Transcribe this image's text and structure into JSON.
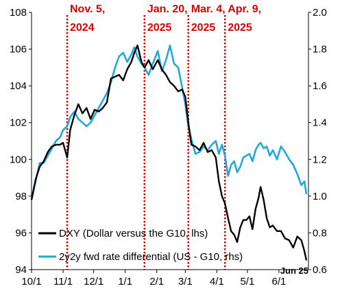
{
  "chart_data": {
    "type": "line",
    "title": "",
    "xlabel": "",
    "ylabel": "",
    "x_ticks": [
      "10/1",
      "11/1",
      "12/1",
      "1/1",
      "2/1",
      "3/1",
      "4/1",
      "5/1",
      "6/1"
    ],
    "x_tick_dates": [
      "2024-10-01",
      "2024-11-01",
      "2024-12-01",
      "2025-01-01",
      "2025-02-01",
      "2025-03-01",
      "2025-04-01",
      "2025-05-01",
      "2025-06-01"
    ],
    "x_range": [
      "2024-10-01",
      "2025-06-30"
    ],
    "y_left": {
      "lim": [
        94,
        108
      ],
      "ticks": [
        "94",
        "96",
        "98",
        "100",
        "102",
        "104",
        "106",
        "108"
      ]
    },
    "y_right": {
      "lim": [
        0.6,
        2.0
      ],
      "ticks": [
        "0.6",
        "0.8",
        "1.0",
        "1.2",
        "1.4",
        "1.6",
        "1.8",
        "2.0"
      ]
    },
    "grid": false,
    "legend_position": "bottom-left",
    "end_label": "Jun 25",
    "events": [
      {
        "date": "2024-11-05",
        "lines": [
          "Nov. 5,",
          "2024"
        ]
      },
      {
        "date": "2025-01-20",
        "lines": [
          "Jan. 20,",
          "2025"
        ]
      },
      {
        "date": "2025-03-04",
        "lines": [
          "Mar. 4,",
          "2025"
        ]
      },
      {
        "date": "2025-04-09",
        "lines": [
          "Apr. 9,",
          "2025"
        ]
      }
    ],
    "series": [
      {
        "name": "DXY (Dollar versus the G10, lhs)",
        "axis": "left",
        "color": "#000000",
        "points": [
          [
            "2024-10-01",
            97.8
          ],
          [
            "2024-10-05",
            98.9
          ],
          [
            "2024-10-09",
            99.6
          ],
          [
            "2024-10-13",
            99.9
          ],
          [
            "2024-10-17",
            100.4
          ],
          [
            "2024-10-21",
            100.7
          ],
          [
            "2024-10-25",
            100.8
          ],
          [
            "2024-10-29",
            100.8
          ],
          [
            "2024-11-01",
            100.9
          ],
          [
            "2024-11-05",
            100.1
          ],
          [
            "2024-11-08",
            101.6
          ],
          [
            "2024-11-12",
            102.4
          ],
          [
            "2024-11-16",
            103.0
          ],
          [
            "2024-11-20",
            102.5
          ],
          [
            "2024-11-24",
            102.8
          ],
          [
            "2024-11-28",
            102.2
          ],
          [
            "2024-12-02",
            102.7
          ],
          [
            "2024-12-06",
            102.6
          ],
          [
            "2024-12-10",
            102.8
          ],
          [
            "2024-12-14",
            103.1
          ],
          [
            "2024-12-18",
            104.4
          ],
          [
            "2024-12-22",
            104.5
          ],
          [
            "2024-12-26",
            104.6
          ],
          [
            "2024-12-30",
            104.3
          ],
          [
            "2025-01-03",
            104.9
          ],
          [
            "2025-01-07",
            105.3
          ],
          [
            "2025-01-10",
            105.8
          ],
          [
            "2025-01-13",
            106.2
          ],
          [
            "2025-01-17",
            105.3
          ],
          [
            "2025-01-20",
            105.0
          ],
          [
            "2025-01-24",
            105.4
          ],
          [
            "2025-01-28",
            104.9
          ],
          [
            "2025-02-02",
            105.4
          ],
          [
            "2025-02-06",
            104.9
          ],
          [
            "2025-02-10",
            104.6
          ],
          [
            "2025-02-14",
            104.2
          ],
          [
            "2025-02-18",
            104.0
          ],
          [
            "2025-02-22",
            103.7
          ],
          [
            "2025-02-26",
            103.8
          ],
          [
            "2025-03-01",
            103.4
          ],
          [
            "2025-03-04",
            102.0
          ],
          [
            "2025-03-07",
            100.8
          ],
          [
            "2025-03-11",
            100.7
          ],
          [
            "2025-03-15",
            100.5
          ],
          [
            "2025-03-19",
            100.9
          ],
          [
            "2025-03-23",
            100.4
          ],
          [
            "2025-03-27",
            100.5
          ],
          [
            "2025-03-31",
            100.1
          ],
          [
            "2025-04-03",
            98.8
          ],
          [
            "2025-04-06",
            98.0
          ],
          [
            "2025-04-09",
            97.6
          ],
          [
            "2025-04-12",
            96.8
          ],
          [
            "2025-04-15",
            96.1
          ],
          [
            "2025-04-18",
            95.9
          ],
          [
            "2025-04-21",
            95.5
          ],
          [
            "2025-04-24",
            96.3
          ],
          [
            "2025-04-27",
            96.7
          ],
          [
            "2025-04-30",
            96.7
          ],
          [
            "2025-05-03",
            96.9
          ],
          [
            "2025-05-06",
            96.2
          ],
          [
            "2025-05-09",
            97.3
          ],
          [
            "2025-05-12",
            97.9
          ],
          [
            "2025-05-14",
            98.5
          ],
          [
            "2025-05-17",
            97.8
          ],
          [
            "2025-05-20",
            96.8
          ],
          [
            "2025-05-23",
            96.3
          ],
          [
            "2025-05-26",
            96.4
          ],
          [
            "2025-05-30",
            96.1
          ],
          [
            "2025-06-03",
            96.1
          ],
          [
            "2025-06-07",
            95.7
          ],
          [
            "2025-06-11",
            95.6
          ],
          [
            "2025-06-15",
            95.2
          ],
          [
            "2025-06-19",
            95.8
          ],
          [
            "2025-06-23",
            95.6
          ],
          [
            "2025-06-26",
            95.0
          ],
          [
            "2025-06-28",
            94.5
          ]
        ]
      },
      {
        "name": "2y2y fwd rate differential (US - G10, rhs)",
        "axis": "right",
        "color": "#1fa8dc",
        "points": [
          [
            "2024-10-01",
            0.98
          ],
          [
            "2024-10-05",
            1.08
          ],
          [
            "2024-10-09",
            1.18
          ],
          [
            "2024-10-13",
            1.18
          ],
          [
            "2024-10-17",
            1.22
          ],
          [
            "2024-10-21",
            1.26
          ],
          [
            "2024-10-25",
            1.3
          ],
          [
            "2024-10-29",
            1.32
          ],
          [
            "2024-11-01",
            1.36
          ],
          [
            "2024-11-05",
            1.38
          ],
          [
            "2024-11-08",
            1.43
          ],
          [
            "2024-11-12",
            1.46
          ],
          [
            "2024-11-16",
            1.42
          ],
          [
            "2024-11-20",
            1.4
          ],
          [
            "2024-11-24",
            1.38
          ],
          [
            "2024-11-28",
            1.4
          ],
          [
            "2024-12-02",
            1.44
          ],
          [
            "2024-12-06",
            1.48
          ],
          [
            "2024-12-10",
            1.52
          ],
          [
            "2024-12-14",
            1.56
          ],
          [
            "2024-12-18",
            1.62
          ],
          [
            "2024-12-22",
            1.7
          ],
          [
            "2024-12-26",
            1.76
          ],
          [
            "2024-12-30",
            1.78
          ],
          [
            "2025-01-03",
            1.73
          ],
          [
            "2025-01-07",
            1.77
          ],
          [
            "2025-01-10",
            1.81
          ],
          [
            "2025-01-13",
            1.76
          ],
          [
            "2025-01-17",
            1.72
          ],
          [
            "2025-01-20",
            1.7
          ],
          [
            "2025-01-24",
            1.66
          ],
          [
            "2025-01-28",
            1.72
          ],
          [
            "2025-02-02",
            1.79
          ],
          [
            "2025-02-06",
            1.68
          ],
          [
            "2025-02-10",
            1.74
          ],
          [
            "2025-02-14",
            1.82
          ],
          [
            "2025-02-18",
            1.72
          ],
          [
            "2025-02-22",
            1.7
          ],
          [
            "2025-02-26",
            1.59
          ],
          [
            "2025-03-01",
            1.5
          ],
          [
            "2025-03-04",
            1.38
          ],
          [
            "2025-03-07",
            1.31
          ],
          [
            "2025-03-11",
            1.23
          ],
          [
            "2025-03-15",
            1.24
          ],
          [
            "2025-03-19",
            1.27
          ],
          [
            "2025-03-23",
            1.25
          ],
          [
            "2025-03-27",
            1.28
          ],
          [
            "2025-03-31",
            1.3
          ],
          [
            "2025-04-03",
            1.23
          ],
          [
            "2025-04-06",
            1.28
          ],
          [
            "2025-04-09",
            1.22
          ],
          [
            "2025-04-12",
            1.11
          ],
          [
            "2025-04-15",
            1.17
          ],
          [
            "2025-04-18",
            1.19
          ],
          [
            "2025-04-21",
            1.13
          ],
          [
            "2025-04-24",
            1.16
          ],
          [
            "2025-04-27",
            1.21
          ],
          [
            "2025-04-30",
            1.22
          ],
          [
            "2025-05-03",
            1.23
          ],
          [
            "2025-05-06",
            1.19
          ],
          [
            "2025-05-09",
            1.25
          ],
          [
            "2025-05-12",
            1.28
          ],
          [
            "2025-05-14",
            1.29
          ],
          [
            "2025-05-17",
            1.26
          ],
          [
            "2025-05-20",
            1.27
          ],
          [
            "2025-05-23",
            1.22
          ],
          [
            "2025-05-26",
            1.25
          ],
          [
            "2025-05-30",
            1.2
          ],
          [
            "2025-06-03",
            1.27
          ],
          [
            "2025-06-07",
            1.24
          ],
          [
            "2025-06-11",
            1.2
          ],
          [
            "2025-06-15",
            1.17
          ],
          [
            "2025-06-19",
            1.12
          ],
          [
            "2025-06-23",
            1.06
          ],
          [
            "2025-06-26",
            1.08
          ],
          [
            "2025-06-28",
            1.01
          ]
        ]
      }
    ]
  }
}
